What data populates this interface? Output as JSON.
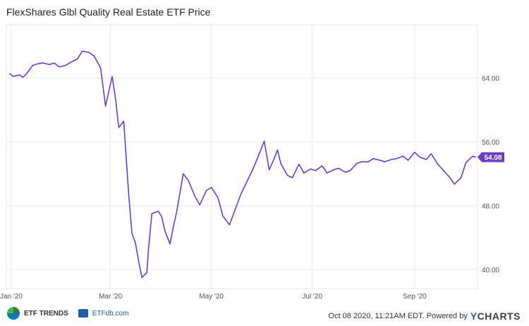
{
  "chart_data": {
    "type": "line",
    "title": "FlexShares Glbl Quality Real Estate ETF Price",
    "x_tick_labels": [
      "Jan '20",
      "Mar '20",
      "May '20",
      "Jul '20",
      "Sep '20"
    ],
    "x_tick_dates": [
      "2020-01-01",
      "2020-03-01",
      "2020-05-01",
      "2020-07-01",
      "2020-09-01"
    ],
    "y_tick_labels": [
      "40.00",
      "48.00",
      "56.00",
      "64.00"
    ],
    "y_ticks": [
      40,
      48,
      56,
      64
    ],
    "ylim": [
      37.6,
      70.7
    ],
    "xlim": [
      "2019-12-29",
      "2020-10-09"
    ],
    "grid": true,
    "line_color": "#6b3fc7",
    "last_value_label": "54.08",
    "last_value": 54.08,
    "series": [
      {
        "x": [
          "2019-12-31",
          "2020-01-02",
          "2020-01-06",
          "2020-01-08",
          "2020-01-10",
          "2020-01-14",
          "2020-01-17",
          "2020-01-20",
          "2020-01-24",
          "2020-01-27",
          "2020-01-30",
          "2020-02-03",
          "2020-02-06",
          "2020-02-10",
          "2020-02-13",
          "2020-02-17",
          "2020-02-20",
          "2020-02-24",
          "2020-02-27",
          "2020-03-02",
          "2020-03-04",
          "2020-03-06",
          "2020-03-09",
          "2020-03-12",
          "2020-03-14",
          "2020-03-16",
          "2020-03-18",
          "2020-03-20",
          "2020-03-23",
          "2020-03-24",
          "2020-03-26",
          "2020-03-30",
          "2020-04-01",
          "2020-04-03",
          "2020-04-06",
          "2020-04-08",
          "2020-04-10",
          "2020-04-14",
          "2020-04-17",
          "2020-04-21",
          "2020-04-24",
          "2020-04-28",
          "2020-05-01",
          "2020-05-05",
          "2020-05-08",
          "2020-05-12",
          "2020-05-15",
          "2020-05-19",
          "2020-05-22",
          "2020-05-26",
          "2020-05-29",
          "2020-06-02",
          "2020-06-05",
          "2020-06-08",
          "2020-06-10",
          "2020-06-12",
          "2020-06-16",
          "2020-06-19",
          "2020-06-23",
          "2020-06-26",
          "2020-06-30",
          "2020-07-03",
          "2020-07-07",
          "2020-07-10",
          "2020-07-14",
          "2020-07-17",
          "2020-07-21",
          "2020-07-24",
          "2020-07-28",
          "2020-07-31",
          "2020-08-04",
          "2020-08-07",
          "2020-08-11",
          "2020-08-14",
          "2020-08-18",
          "2020-08-21",
          "2020-08-25",
          "2020-08-28",
          "2020-09-01",
          "2020-09-04",
          "2020-09-08",
          "2020-09-11",
          "2020-09-15",
          "2020-09-18",
          "2020-09-22",
          "2020-09-25",
          "2020-09-29",
          "2020-10-02",
          "2020-10-06",
          "2020-10-08"
        ],
        "values": [
          64.6,
          64.2,
          64.4,
          64.1,
          64.5,
          65.6,
          65.8,
          65.9,
          65.7,
          65.9,
          65.4,
          65.6,
          66.0,
          66.4,
          67.4,
          67.2,
          66.8,
          65.3,
          60.5,
          64.2,
          61.5,
          57.8,
          58.6,
          49.5,
          44.5,
          43.4,
          41.1,
          39.0,
          39.6,
          42.6,
          47.0,
          47.3,
          46.6,
          44.8,
          43.2,
          45.3,
          47.2,
          52.0,
          51.2,
          49.2,
          48.1,
          49.9,
          50.3,
          49.0,
          46.7,
          45.6,
          47.3,
          49.5,
          50.8,
          52.5,
          54.0,
          56.1,
          52.5,
          53.9,
          55.0,
          53.3,
          51.8,
          51.5,
          53.2,
          52.1,
          52.6,
          52.4,
          53.0,
          52.1,
          52.5,
          52.7,
          52.2,
          52.4,
          53.3,
          53.5,
          53.5,
          53.9,
          53.7,
          53.5,
          53.8,
          53.9,
          54.2,
          53.7,
          54.7,
          54.1,
          53.8,
          54.5,
          53.2,
          52.5,
          51.6,
          50.7,
          51.5,
          53.4,
          54.2,
          54.08
        ]
      }
    ]
  },
  "footer": {
    "brand1": "ETF TRENDS",
    "brand2": "ETFdb.com",
    "timestamp": "Oct 08 2020, 11:21AM EDT. Powered by",
    "ycharts_y": "Y",
    "ycharts_rest": "CHARTS"
  }
}
